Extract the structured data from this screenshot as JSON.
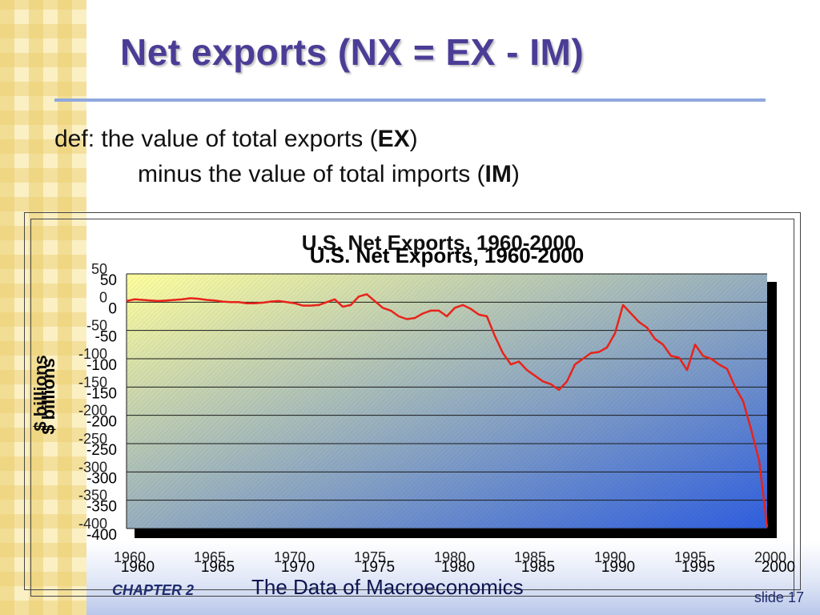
{
  "slide": {
    "title": "Net exports  (NX = EX - IM)",
    "definition": {
      "line1_prefix": "def:  the value of total exports (",
      "line1_term": "EX",
      "line1_suffix": ")",
      "line2_prefix": "minus the value of total imports (",
      "line2_term": "IM",
      "line2_suffix": ")"
    },
    "footer": {
      "chapter": "CHAPTER 2",
      "subtitle": "The Data of Macroeconomics",
      "slide_label": "slide",
      "slide_number": "17"
    }
  },
  "colors": {
    "title": "#4b3d96",
    "series_line": "#e8231a",
    "plot_gradient_start": "#ffff9e",
    "plot_gradient_end": "#2f5fe0"
  },
  "chart_data": {
    "type": "line",
    "title": "U.S. Net Exports, 1960-2000",
    "ylabel": "$ billions",
    "xlabel": "",
    "xlim": [
      1960,
      2000
    ],
    "ylim": [
      -400,
      50
    ],
    "grid": true,
    "legend": "none",
    "x_ticks": [
      1960,
      1965,
      1970,
      1975,
      1980,
      1985,
      1990,
      1995,
      2000
    ],
    "y_ticks": [
      50,
      0,
      -50,
      -100,
      -150,
      -200,
      -250,
      -300,
      -350,
      -400
    ],
    "series": [
      {
        "x": [
          1960,
          1960.5,
          1961,
          1961.5,
          1962,
          1962.5,
          1963,
          1963.5,
          1964,
          1964.5,
          1965,
          1965.5,
          1966,
          1966.5,
          1967,
          1967.5,
          1968,
          1968.5,
          1969,
          1969.5,
          1970,
          1970.5,
          1971,
          1971.5,
          1972,
          1972.5,
          1973,
          1973.5,
          1974,
          1974.5,
          1975,
          1975.5,
          1976,
          1976.5,
          1977,
          1977.5,
          1978,
          1978.5,
          1979,
          1979.5,
          1980,
          1980.5,
          1981,
          1981.5,
          1982,
          1982.5,
          1983,
          1983.5,
          1984,
          1984.5,
          1985,
          1985.5,
          1986,
          1986.5,
          1987,
          1987.5,
          1988,
          1988.5,
          1989,
          1989.5,
          1990,
          1990.5,
          1991,
          1991.5,
          1992,
          1992.5,
          1993,
          1993.5,
          1994,
          1994.5,
          1995,
          1995.5,
          1996,
          1996.5,
          1997,
          1997.5,
          1998,
          1998.5,
          1999,
          1999.5,
          2000
        ],
        "values": [
          2,
          5,
          4,
          3,
          2,
          3,
          4,
          5,
          7,
          6,
          4,
          3,
          1,
          0,
          0,
          -2,
          -2,
          -1,
          1,
          2,
          0,
          -2,
          -6,
          -6,
          -5,
          0,
          5,
          -8,
          -5,
          10,
          14,
          2,
          -10,
          -15,
          -25,
          -30,
          -28,
          -20,
          -15,
          -15,
          -25,
          -10,
          -5,
          -12,
          -22,
          -25,
          -60,
          -90,
          -110,
          -105,
          -120,
          -130,
          -140,
          -145,
          -155,
          -140,
          -110,
          -100,
          -90,
          -88,
          -80,
          -55,
          -5,
          -20,
          -35,
          -45,
          -65,
          -75,
          -95,
          -98,
          -120,
          -75,
          -95,
          -100,
          -110,
          -118,
          -150,
          -175,
          -225,
          -280,
          -398
        ]
      }
    ]
  }
}
